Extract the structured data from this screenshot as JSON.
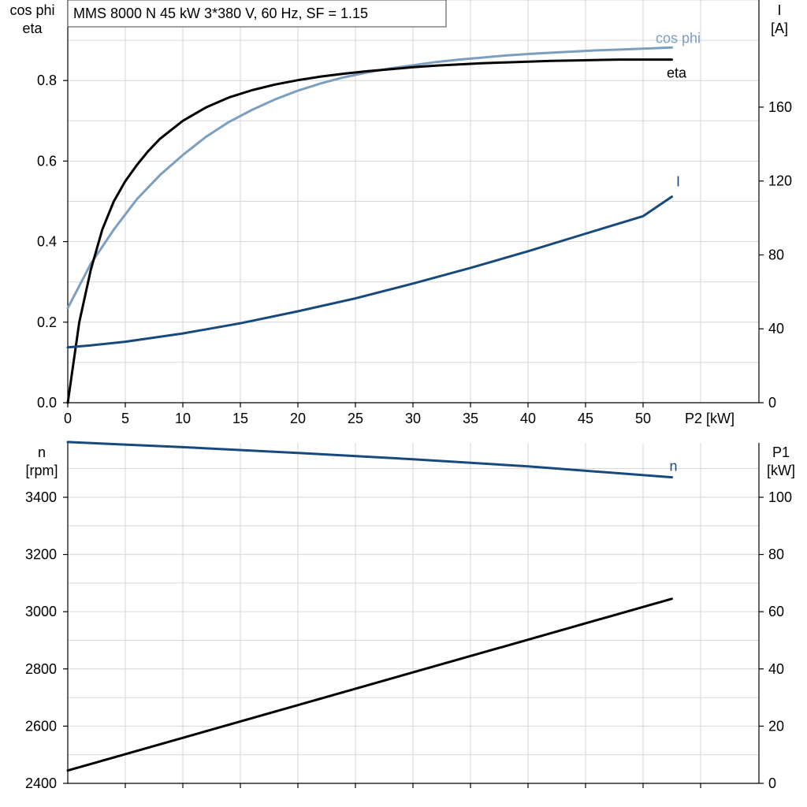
{
  "chart_data": [
    {
      "type": "line",
      "title": "MMS 8000 N   45 kW   3*380 V, 60 Hz, SF = 1.15",
      "xlabel": "P2 [kW]",
      "xlim": [
        0,
        60
      ],
      "xticks": [
        "0",
        "5",
        "10",
        "15",
        "20",
        "25",
        "30",
        "35",
        "40",
        "45",
        "50"
      ],
      "ylabel_left": [
        "cos phi",
        "eta"
      ],
      "ylim_left": [
        0,
        1.0
      ],
      "yticks_left": [
        "0.0",
        "0.2",
        "0.4",
        "0.6",
        "0.8"
      ],
      "ylabel_right": [
        "I",
        "[A]"
      ],
      "ylim_right": [
        0,
        218
      ],
      "yticks_right": [
        "0",
        "40",
        "80",
        "120",
        "160"
      ],
      "grid": true,
      "series": [
        {
          "name": "cos phi",
          "axis": "left",
          "color": "#7c9ebf",
          "x": [
            0,
            2,
            4,
            6,
            8,
            10,
            12,
            14,
            16,
            18,
            20,
            22,
            24,
            26,
            28,
            30,
            32,
            34,
            36,
            38,
            40,
            42,
            44,
            46,
            48,
            50,
            52.5
          ],
          "y": [
            0.235,
            0.345,
            0.43,
            0.505,
            0.565,
            0.615,
            0.66,
            0.697,
            0.727,
            0.753,
            0.775,
            0.793,
            0.808,
            0.82,
            0.83,
            0.838,
            0.846,
            0.852,
            0.857,
            0.862,
            0.866,
            0.869,
            0.872,
            0.875,
            0.877,
            0.879,
            0.882
          ]
        },
        {
          "name": "eta",
          "axis": "left",
          "color": "#000000",
          "x": [
            0,
            1,
            2,
            3,
            4,
            5,
            6,
            7,
            8,
            10,
            12,
            14,
            16,
            18,
            20,
            22,
            24,
            26,
            28,
            30,
            32,
            34,
            36,
            38,
            40,
            42,
            44,
            46,
            48,
            50,
            52.5
          ],
          "y": [
            0.0,
            0.2,
            0.33,
            0.43,
            0.5,
            0.55,
            0.59,
            0.625,
            0.655,
            0.7,
            0.733,
            0.758,
            0.776,
            0.79,
            0.801,
            0.81,
            0.817,
            0.823,
            0.828,
            0.833,
            0.837,
            0.84,
            0.843,
            0.845,
            0.847,
            0.849,
            0.85,
            0.851,
            0.852,
            0.852,
            0.852
          ]
        },
        {
          "name": "I",
          "axis": "right",
          "color": "#174a7c",
          "x": [
            0,
            2,
            5,
            10,
            15,
            20,
            25,
            30,
            35,
            40,
            45,
            50,
            52.5
          ],
          "y": [
            30,
            31,
            33,
            37.5,
            43,
            49.5,
            56.5,
            64.5,
            73,
            82,
            91.5,
            101,
            111.5
          ]
        }
      ]
    },
    {
      "type": "line",
      "xlabel": "",
      "xlim": [
        0,
        60
      ],
      "ylabel_left": [
        "n",
        "[rpm]"
      ],
      "ylim_left": [
        2400,
        3590
      ],
      "yticks_left": [
        "2400",
        "2600",
        "2800",
        "3000",
        "3200",
        "3400"
      ],
      "ylabel_right": [
        "P1",
        "[kW]"
      ],
      "ylim_right": [
        0,
        119
      ],
      "yticks_right": [
        "0",
        "20",
        "40",
        "60",
        "80",
        "100"
      ],
      "grid": true,
      "series": [
        {
          "name": "n",
          "axis": "left",
          "color": "#174a7c",
          "x": [
            0,
            10,
            20,
            30,
            40,
            52.5
          ],
          "y": [
            3593,
            3575,
            3555,
            3533,
            3508,
            3470
          ]
        },
        {
          "axis": "right",
          "color": "#000000",
          "x": [
            0,
            52.5
          ],
          "y": [
            4.5,
            64.5
          ]
        }
      ]
    }
  ]
}
